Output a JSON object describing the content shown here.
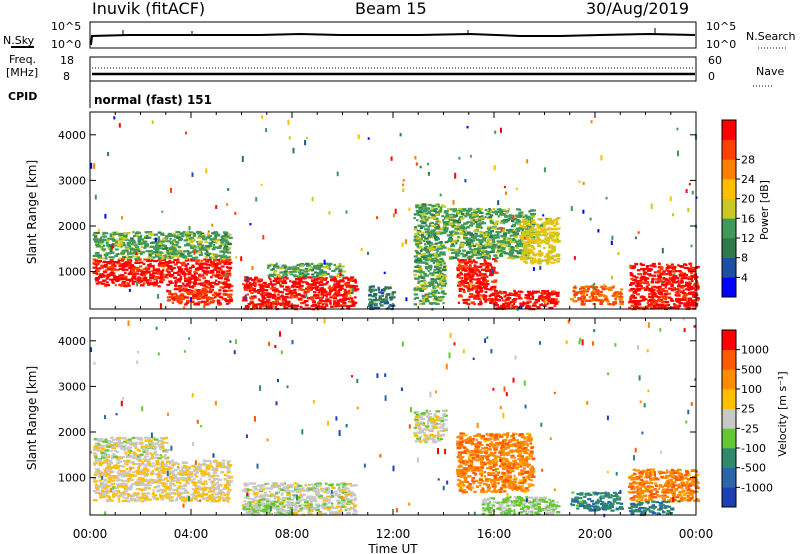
{
  "header": {
    "title": "Inuvik (fitACF)",
    "beam": "Beam 15",
    "date": "30/Aug/2019"
  },
  "panels": {
    "nsky": {
      "label": "N.Sky",
      "ticks": [
        "10^5",
        "10^0"
      ],
      "right_ticks": [
        "10^5",
        "10^0"
      ],
      "right_label": "N.Search"
    },
    "freq": {
      "label_line1": "Freq.",
      "label_line2": "[MHz]",
      "ticks": [
        "18",
        "8"
      ],
      "right_ticks": [
        "60",
        "0"
      ],
      "right_label": "Nave"
    },
    "cpid": {
      "label": "CPID",
      "mode": "normal (fast) 151"
    }
  },
  "axes": {
    "ylabel": "Slant Range [km]",
    "yticks": [
      "1000",
      "2000",
      "3000",
      "4000"
    ],
    "xlabel": "Time UT",
    "xticks": [
      "00:00",
      "04:00",
      "08:00",
      "12:00",
      "16:00",
      "20:00",
      "00:00"
    ]
  },
  "power_scale": {
    "label": "Power [dB]",
    "tick_labels": [
      "4",
      "8",
      "12",
      "16",
      "20",
      "24",
      "28"
    ],
    "colors": [
      "#0000ff",
      "#1f4fa3",
      "#2f7a4a",
      "#3f9a5a",
      "#c8c820",
      "#ffbf00",
      "#ff8000",
      "#ff4000",
      "#ff0000"
    ]
  },
  "velocity_scale": {
    "label": "Velocity [m s⁻¹]",
    "tick_labels": [
      "1000",
      "500",
      "100",
      "25",
      "-25",
      "-100",
      "-500",
      "-1000"
    ],
    "colors": [
      "#1e3fb0",
      "#2a66a8",
      "#2e8a6a",
      "#64c832",
      "#c8c8c8",
      "#ffbf00",
      "#ff8c00",
      "#ff5a00",
      "#ff0000"
    ],
    "ground_scatter_color": "#b4b4b4"
  },
  "chart_data": {
    "type": "heatmap",
    "x_label": "Time UT",
    "x_range_hours": [
      0,
      24
    ],
    "y_label": "Slant Range [km]",
    "y_range_km": [
      180,
      4500
    ],
    "panels": [
      {
        "name": "power",
        "units": "dB",
        "color_range": [
          0,
          30
        ],
        "regions": [
          {
            "t0": 0.1,
            "t1": 5.5,
            "r0": 700,
            "r1": 1300,
            "value": 28
          },
          {
            "t0": 0.1,
            "t1": 5.5,
            "r0": 1300,
            "r1": 1900,
            "value": 12
          },
          {
            "t0": 3.0,
            "t1": 5.5,
            "r0": 300,
            "r1": 700,
            "value": 26
          },
          {
            "t0": 6.0,
            "t1": 10.5,
            "r0": 200,
            "r1": 900,
            "value": 28
          },
          {
            "t0": 7.0,
            "t1": 10.0,
            "r0": 900,
            "r1": 1200,
            "value": 12
          },
          {
            "t0": 11.0,
            "t1": 12.0,
            "r0": 200,
            "r1": 700,
            "value": 8
          },
          {
            "t0": 12.8,
            "t1": 14.0,
            "r0": 300,
            "r1": 2500,
            "value": 12
          },
          {
            "t0": 14.5,
            "t1": 16.0,
            "r0": 300,
            "r1": 1300,
            "value": 28
          },
          {
            "t0": 14.0,
            "t1": 17.5,
            "r0": 1300,
            "r1": 2400,
            "value": 12
          },
          {
            "t0": 16.0,
            "t1": 18.5,
            "r0": 200,
            "r1": 600,
            "value": 28
          },
          {
            "t0": 17.0,
            "t1": 18.5,
            "r0": 1200,
            "r1": 2200,
            "value": 16
          },
          {
            "t0": 19.0,
            "t1": 21.0,
            "r0": 300,
            "r1": 700,
            "value": 24
          },
          {
            "t0": 21.3,
            "t1": 24.0,
            "r0": 200,
            "r1": 1200,
            "value": 28
          }
        ]
      },
      {
        "name": "velocity",
        "units": "m s^-1",
        "color_range": [
          -1000,
          1000
        ],
        "regions": [
          {
            "t0": 0.1,
            "t1": 5.5,
            "r0": 500,
            "r1": 1400,
            "value": 100
          },
          {
            "t0": 0.1,
            "t1": 3.0,
            "r0": 1400,
            "r1": 1900,
            "value": 0
          },
          {
            "t0": 6.0,
            "t1": 10.5,
            "r0": 200,
            "r1": 900,
            "value": 0
          },
          {
            "t0": 6.0,
            "t1": 8.0,
            "r0": 200,
            "r1": 500,
            "value": -100
          },
          {
            "t0": 12.8,
            "t1": 14.0,
            "r0": 1800,
            "r1": 2500,
            "value": 0
          },
          {
            "t0": 14.5,
            "t1": 17.5,
            "r0": 700,
            "r1": 2000,
            "value": 500
          },
          {
            "t0": 15.5,
            "t1": 18.5,
            "r0": 200,
            "r1": 600,
            "value": -100
          },
          {
            "t0": 19.0,
            "t1": 21.0,
            "r0": 300,
            "r1": 700,
            "value": -500
          },
          {
            "t0": 21.3,
            "t1": 24.0,
            "r0": 500,
            "r1": 1200,
            "value": 500
          },
          {
            "t0": 21.3,
            "t1": 23.0,
            "r0": 200,
            "r1": 500,
            "value": -500
          }
        ]
      }
    ]
  }
}
